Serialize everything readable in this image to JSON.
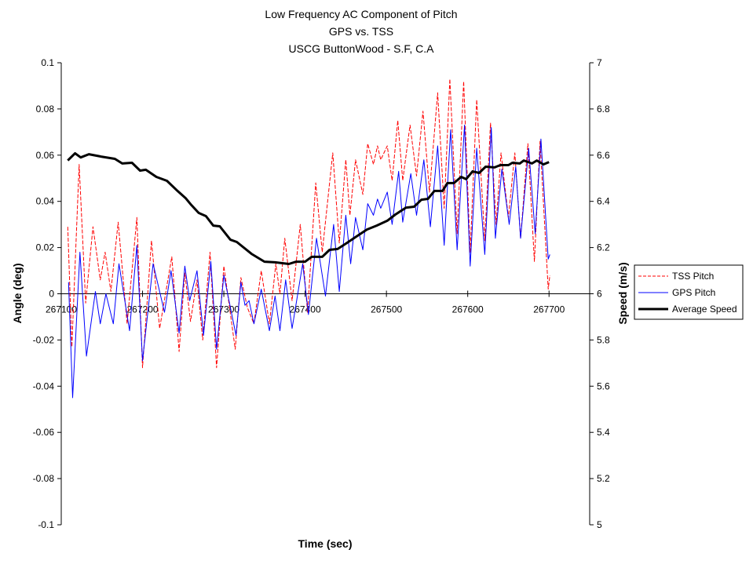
{
  "chart_data": {
    "type": "line",
    "title": [
      "Low Frequency AC Component of Pitch",
      "GPS vs. TSS",
      "USCG ButtonWood  -  S.F, C.A"
    ],
    "xlabel": "Time (sec)",
    "ylabel": "Angle (deg)",
    "y2label": "Speed (m/s)",
    "xlim": [
      267100,
      267750
    ],
    "ylim": [
      -0.1,
      0.1
    ],
    "y2lim": [
      5,
      7
    ],
    "xticks": [
      "267100",
      "267200",
      "267300",
      "267400",
      "267500",
      "267600",
      "267700"
    ],
    "yticks": [
      "0.1",
      "0.08",
      "0.06",
      "0.04",
      "0.02",
      "0",
      "-0.02",
      "-0.04",
      "-0.06",
      "-0.08",
      "-0.1"
    ],
    "y2ticks": [
      "7",
      "6.8",
      "6.6",
      "6.4",
      "6.2",
      "6",
      "5.8",
      "5.6",
      "5.4",
      "5.2",
      "5"
    ],
    "grid": false,
    "legend_position": "right",
    "series": [
      {
        "name": "TSS Pitch",
        "axis": "left",
        "color": "#ff0000",
        "style": "dashed",
        "points": [
          [
            267108,
            0.029
          ],
          [
            267113,
            -0.023
          ],
          [
            267122,
            0.056
          ],
          [
            267130,
            -0.004
          ],
          [
            267139,
            0.029
          ],
          [
            267148,
            0.006
          ],
          [
            267154,
            0.018
          ],
          [
            267161,
            0.001
          ],
          [
            267170,
            0.031
          ],
          [
            267181,
            -0.013
          ],
          [
            267193,
            0.033
          ],
          [
            267200,
            -0.032
          ],
          [
            267211,
            0.023
          ],
          [
            267221,
            -0.015
          ],
          [
            267236,
            0.016
          ],
          [
            267245,
            -0.025
          ],
          [
            267252,
            0.009
          ],
          [
            267259,
            -0.012
          ],
          [
            267267,
            0.006
          ],
          [
            267274,
            -0.02
          ],
          [
            267283,
            0.018
          ],
          [
            267291,
            -0.032
          ],
          [
            267300,
            0.012
          ],
          [
            267314,
            -0.024
          ],
          [
            267321,
            0.007
          ],
          [
            267329,
            -0.006
          ],
          [
            267337,
            -0.013
          ],
          [
            267346,
            0.01
          ],
          [
            267356,
            -0.013
          ],
          [
            267364,
            0.013
          ],
          [
            267369,
            0.0
          ],
          [
            267375,
            0.024
          ],
          [
            267384,
            -0.003
          ],
          [
            267394,
            0.03
          ],
          [
            267403,
            -0.008
          ],
          [
            267413,
            0.048
          ],
          [
            267421,
            0.018
          ],
          [
            267434,
            0.061
          ],
          [
            267442,
            0.022
          ],
          [
            267450,
            0.058
          ],
          [
            267455,
            0.034
          ],
          [
            267462,
            0.058
          ],
          [
            267471,
            0.043
          ],
          [
            267477,
            0.065
          ],
          [
            267484,
            0.056
          ],
          [
            267489,
            0.064
          ],
          [
            267493,
            0.058
          ],
          [
            267501,
            0.064
          ],
          [
            267507,
            0.049
          ],
          [
            267514,
            0.075
          ],
          [
            267520,
            0.049
          ],
          [
            267529,
            0.073
          ],
          [
            267537,
            0.051
          ],
          [
            267545,
            0.079
          ],
          [
            267553,
            0.044
          ],
          [
            267563,
            0.087
          ],
          [
            267571,
            0.037
          ],
          [
            267578,
            0.093
          ],
          [
            267587,
            0.026
          ],
          [
            267595,
            0.092
          ],
          [
            267603,
            0.018
          ],
          [
            267611,
            0.084
          ],
          [
            267621,
            0.023
          ],
          [
            267628,
            0.074
          ],
          [
            267635,
            0.03
          ],
          [
            267641,
            0.061
          ],
          [
            267650,
            0.033
          ],
          [
            267658,
            0.061
          ],
          [
            267665,
            0.024
          ],
          [
            267674,
            0.065
          ],
          [
            267682,
            0.014
          ],
          [
            267689,
            0.066
          ],
          [
            267699,
            0.002
          ],
          [
            267701,
            0.008
          ]
        ]
      },
      {
        "name": "GPS Pitch",
        "axis": "left",
        "color": "#0000ff",
        "style": "solid",
        "points": [
          [
            267109,
            0.005
          ],
          [
            267114,
            -0.045
          ],
          [
            267123,
            0.018
          ],
          [
            267131,
            -0.027
          ],
          [
            267142,
            0.001
          ],
          [
            267148,
            -0.013
          ],
          [
            267155,
            0.0
          ],
          [
            267164,
            -0.013
          ],
          [
            267171,
            0.013
          ],
          [
            267184,
            -0.016
          ],
          [
            267193,
            0.021
          ],
          [
            267200,
            -0.029
          ],
          [
            267213,
            0.013
          ],
          [
            267227,
            -0.008
          ],
          [
            267235,
            0.01
          ],
          [
            267245,
            -0.017
          ],
          [
            267252,
            0.012
          ],
          [
            267258,
            -0.003
          ],
          [
            267267,
            0.01
          ],
          [
            267275,
            -0.018
          ],
          [
            267284,
            0.014
          ],
          [
            267291,
            -0.024
          ],
          [
            267300,
            0.008
          ],
          [
            267315,
            -0.018
          ],
          [
            267321,
            0.005
          ],
          [
            267326,
            -0.005
          ],
          [
            267331,
            -0.003
          ],
          [
            267337,
            -0.013
          ],
          [
            267346,
            0.002
          ],
          [
            267356,
            -0.016
          ],
          [
            267363,
            -0.001
          ],
          [
            267369,
            -0.016
          ],
          [
            267376,
            0.006
          ],
          [
            267384,
            -0.015
          ],
          [
            267397,
            0.013
          ],
          [
            267404,
            -0.009
          ],
          [
            267414,
            0.024
          ],
          [
            267425,
            -0.001
          ],
          [
            267435,
            0.03
          ],
          [
            267442,
            0.001
          ],
          [
            267450,
            0.034
          ],
          [
            267456,
            0.013
          ],
          [
            267462,
            0.033
          ],
          [
            267471,
            0.019
          ],
          [
            267477,
            0.039
          ],
          [
            267484,
            0.034
          ],
          [
            267489,
            0.041
          ],
          [
            267493,
            0.037
          ],
          [
            267501,
            0.044
          ],
          [
            267507,
            0.03
          ],
          [
            267515,
            0.053
          ],
          [
            267520,
            0.031
          ],
          [
            267530,
            0.052
          ],
          [
            267537,
            0.034
          ],
          [
            267546,
            0.058
          ],
          [
            267554,
            0.029
          ],
          [
            267563,
            0.064
          ],
          [
            267571,
            0.021
          ],
          [
            267579,
            0.071
          ],
          [
            267587,
            0.019
          ],
          [
            267596,
            0.073
          ],
          [
            267603,
            0.012
          ],
          [
            267611,
            0.063
          ],
          [
            267621,
            0.017
          ],
          [
            267629,
            0.072
          ],
          [
            267634,
            0.024
          ],
          [
            267642,
            0.054
          ],
          [
            267651,
            0.03
          ],
          [
            267659,
            0.055
          ],
          [
            267665,
            0.024
          ],
          [
            267675,
            0.063
          ],
          [
            267683,
            0.026
          ],
          [
            267690,
            0.067
          ],
          [
            267699,
            0.015
          ],
          [
            267701,
            0.017
          ]
        ]
      },
      {
        "name": "Average Speed",
        "axis": "right",
        "color": "#000000",
        "style": "solid-thick",
        "points": [
          [
            267108,
            6.577
          ],
          [
            267117,
            6.608
          ],
          [
            267124,
            6.59
          ],
          [
            267134,
            6.604
          ],
          [
            267149,
            6.594
          ],
          [
            267166,
            6.584
          ],
          [
            267175,
            6.564
          ],
          [
            267187,
            6.567
          ],
          [
            267197,
            6.533
          ],
          [
            267204,
            6.537
          ],
          [
            267217,
            6.506
          ],
          [
            267230,
            6.489
          ],
          [
            267243,
            6.445
          ],
          [
            267253,
            6.414
          ],
          [
            267260,
            6.384
          ],
          [
            267269,
            6.35
          ],
          [
            267278,
            6.336
          ],
          [
            267287,
            6.295
          ],
          [
            267295,
            6.292
          ],
          [
            267308,
            6.234
          ],
          [
            267316,
            6.224
          ],
          [
            267334,
            6.173
          ],
          [
            267350,
            6.139
          ],
          [
            267363,
            6.136
          ],
          [
            267380,
            6.129
          ],
          [
            267389,
            6.139
          ],
          [
            267400,
            6.139
          ],
          [
            267408,
            6.16
          ],
          [
            267421,
            6.16
          ],
          [
            267430,
            6.19
          ],
          [
            267440,
            6.194
          ],
          [
            267450,
            6.217
          ],
          [
            267462,
            6.245
          ],
          [
            267476,
            6.278
          ],
          [
            267488,
            6.295
          ],
          [
            267501,
            6.316
          ],
          [
            267511,
            6.343
          ],
          [
            267524,
            6.373
          ],
          [
            267534,
            6.377
          ],
          [
            267543,
            6.407
          ],
          [
            267551,
            6.411
          ],
          [
            267559,
            6.445
          ],
          [
            267569,
            6.445
          ],
          [
            267575,
            6.479
          ],
          [
            267583,
            6.479
          ],
          [
            267592,
            6.506
          ],
          [
            267598,
            6.496
          ],
          [
            267606,
            6.53
          ],
          [
            267614,
            6.523
          ],
          [
            267622,
            6.55
          ],
          [
            267633,
            6.547
          ],
          [
            267640,
            6.557
          ],
          [
            267650,
            6.557
          ],
          [
            267655,
            6.567
          ],
          [
            267664,
            6.564
          ],
          [
            267669,
            6.577
          ],
          [
            267679,
            6.564
          ],
          [
            267685,
            6.577
          ],
          [
            267693,
            6.56
          ],
          [
            267700,
            6.57
          ]
        ]
      }
    ]
  }
}
